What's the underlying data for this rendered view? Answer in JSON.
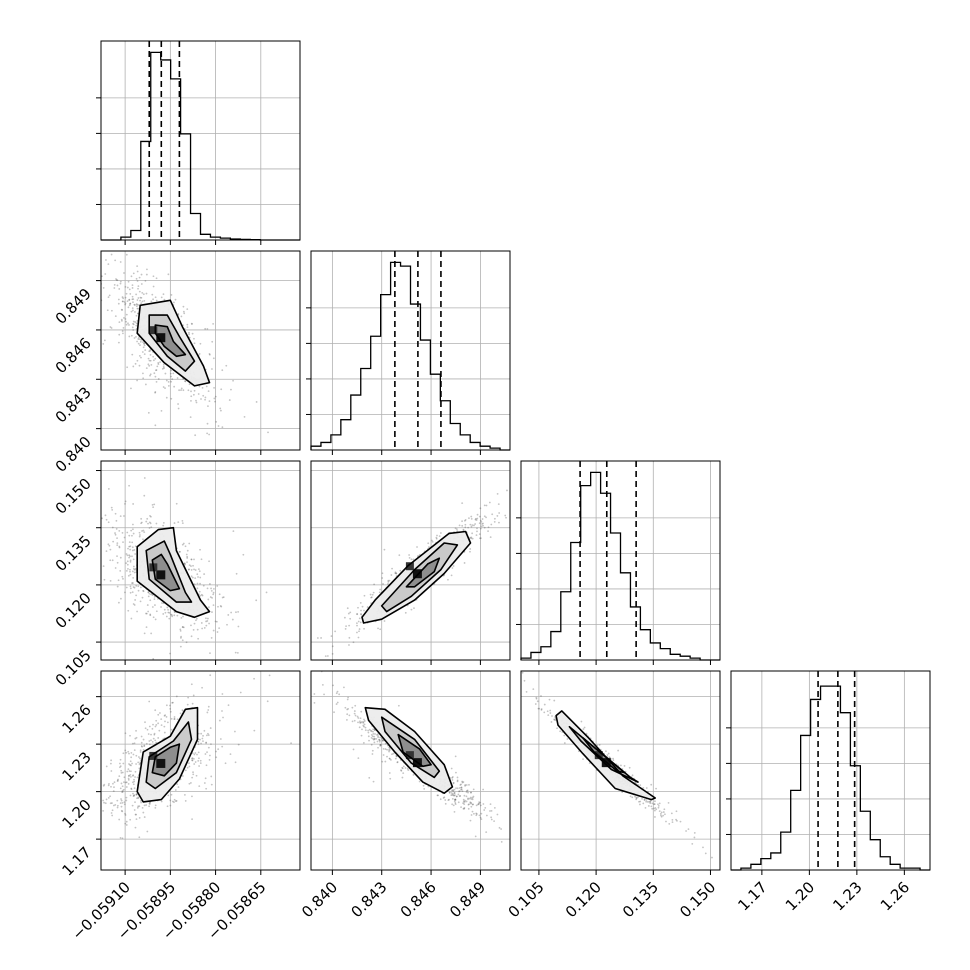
{
  "colors": {
    "contour": "#000000",
    "scatter": "#555555",
    "grid": "#b0b0b0",
    "quantile": "#000000"
  },
  "chart_data": {
    "type": "corner",
    "parameters": [
      {
        "range": [
          -0.05918,
          -0.05852
        ],
        "ticks": [
          -0.0591,
          -0.05895,
          -0.0588,
          -0.05865
        ],
        "tick_labels": [
          "−0.05910",
          "−0.05895",
          "−0.05880",
          "−0.05865"
        ],
        "hist_bins": [
          0.0,
          0.0,
          0.015,
          0.05,
          0.52,
          0.99,
          0.95,
          0.85,
          0.56,
          0.14,
          0.03,
          0.015,
          0.01,
          0.005,
          0.003,
          0.002,
          0.0,
          0.0,
          0.0,
          0.0
        ],
        "quantiles": [
          -0.05902,
          -0.05898,
          -0.05892
        ]
      },
      {
        "range": [
          0.8387,
          0.8508
        ],
        "ticks": [
          0.84,
          0.843,
          0.846,
          0.849
        ],
        "tick_labels": [
          "0.840",
          "0.843",
          "0.846",
          "0.849"
        ],
        "hist_bins": [
          0.02,
          0.04,
          0.08,
          0.16,
          0.29,
          0.43,
          0.6,
          0.82,
          0.99,
          0.97,
          0.77,
          0.58,
          0.4,
          0.26,
          0.14,
          0.08,
          0.04,
          0.02,
          0.01,
          0.0
        ],
        "quantiles": [
          0.8438,
          0.8452,
          0.8466
        ]
      },
      {
        "range": [
          0.1003,
          0.1525
        ],
        "ticks": [
          0.105,
          0.12,
          0.135,
          0.15
        ],
        "tick_labels": [
          "0.105",
          "0.120",
          "0.135",
          "0.150"
        ],
        "hist_bins": [
          0.01,
          0.04,
          0.07,
          0.15,
          0.36,
          0.62,
          0.92,
          0.99,
          0.88,
          0.67,
          0.46,
          0.28,
          0.16,
          0.09,
          0.06,
          0.03,
          0.02,
          0.01,
          0.0,
          0.0
        ],
        "quantiles": [
          0.1158,
          0.1228,
          0.1305
        ]
      },
      {
        "range": [
          1.1505,
          1.2762
        ],
        "ticks": [
          1.17,
          1.2,
          1.23,
          1.26
        ],
        "tick_labels": [
          "1.17",
          "1.20",
          "1.23",
          "1.26"
        ],
        "hist_bins": [
          0.0,
          0.01,
          0.03,
          0.06,
          0.09,
          0.2,
          0.42,
          0.71,
          0.9,
          0.97,
          0.97,
          0.83,
          0.55,
          0.31,
          0.16,
          0.07,
          0.03,
          0.01,
          0.01,
          0.0
        ],
        "quantiles": [
          1.2055,
          1.218,
          1.2286
        ]
      }
    ],
    "pairs": [
      {
        "x": 0,
        "y": 1,
        "mean": [
          -0.05898,
          0.8455
        ],
        "sd": [
          7e-05,
          0.0016
        ],
        "corr": -0.72,
        "contours": [
          [
            [
              -0.05905,
              0.8475
            ],
            [
              -0.05895,
              0.8478
            ],
            [
              -0.05891,
              0.8462
            ],
            [
              -0.05884,
              0.8438
            ],
            [
              -0.05882,
              0.8428
            ],
            [
              -0.05887,
              0.8426
            ],
            [
              -0.05897,
              0.844
            ],
            [
              -0.05906,
              0.8458
            ]
          ],
          [
            [
              -0.05902,
              0.8469
            ],
            [
              -0.05896,
              0.8469
            ],
            [
              -0.05892,
              0.8456
            ],
            [
              -0.05887,
              0.8441
            ],
            [
              -0.0589,
              0.8435
            ],
            [
              -0.05896,
              0.8444
            ],
            [
              -0.05902,
              0.8458
            ]
          ],
          [
            [
              -0.059,
              0.8463
            ],
            [
              -0.05896,
              0.8462
            ],
            [
              -0.05894,
              0.8453
            ],
            [
              -0.0589,
              0.8445
            ],
            [
              -0.05893,
              0.8444
            ],
            [
              -0.05897,
              0.845
            ],
            [
              -0.059,
              0.8458
            ]
          ]
        ]
      },
      {
        "x": 0,
        "y": 2,
        "mean": [
          -0.05898,
          0.1225
        ],
        "sd": [
          7e-05,
          0.0058
        ],
        "corr": -0.55,
        "contours": [
          [
            [
              -0.05906,
              0.13
            ],
            [
              -0.05899,
              0.1345
            ],
            [
              -0.05894,
              0.135
            ],
            [
              -0.05893,
              0.129
            ],
            [
              -0.05885,
              0.116
            ],
            [
              -0.05882,
              0.113
            ],
            [
              -0.05887,
              0.1115
            ],
            [
              -0.05893,
              0.113
            ],
            [
              -0.05906,
              0.121
            ]
          ],
          [
            [
              -0.05903,
              0.129
            ],
            [
              -0.05897,
              0.1315
            ],
            [
              -0.05895,
              0.128
            ],
            [
              -0.0589,
              0.118
            ],
            [
              -0.05888,
              0.1155
            ],
            [
              -0.05893,
              0.1155
            ],
            [
              -0.05902,
              0.1215
            ]
          ],
          [
            [
              -0.05901,
              0.1265
            ],
            [
              -0.05898,
              0.128
            ],
            [
              -0.05896,
              0.1255
            ],
            [
              -0.05892,
              0.119
            ],
            [
              -0.05895,
              0.1185
            ],
            [
              -0.059,
              0.1215
            ]
          ]
        ]
      },
      {
        "x": 0,
        "y": 3,
        "mean": [
          -0.05898,
          1.2175
        ],
        "sd": [
          7e-05,
          0.0125
        ],
        "corr": 0.55,
        "contours": [
          [
            [
              -0.05906,
              1.2
            ],
            [
              -0.05904,
              1.225
            ],
            [
              -0.05895,
              1.235
            ],
            [
              -0.0589,
              1.252
            ],
            [
              -0.05886,
              1.253
            ],
            [
              -0.05886,
              1.233
            ],
            [
              -0.05892,
              1.208
            ],
            [
              -0.05898,
              1.195
            ],
            [
              -0.05904,
              1.1935
            ]
          ],
          [
            [
              -0.05903,
              1.206
            ],
            [
              -0.05902,
              1.222
            ],
            [
              -0.05894,
              1.232
            ],
            [
              -0.05889,
              1.244
            ],
            [
              -0.05888,
              1.233
            ],
            [
              -0.05893,
              1.212
            ],
            [
              -0.059,
              1.202
            ]
          ],
          [
            [
              -0.05901,
              1.212
            ],
            [
              -0.059,
              1.222
            ],
            [
              -0.05895,
              1.228
            ],
            [
              -0.05892,
              1.23
            ],
            [
              -0.05893,
              1.218
            ],
            [
              -0.05897,
              1.21
            ]
          ]
        ]
      },
      {
        "x": 1,
        "y": 2,
        "mean": [
          0.8452,
          0.1228
        ],
        "sd": [
          0.0016,
          0.0058
        ],
        "corr": 0.93,
        "contours": [
          [
            [
              0.8418,
              0.1115
            ],
            [
              0.8426,
              0.116
            ],
            [
              0.8446,
              0.125
            ],
            [
              0.8471,
              0.1335
            ],
            [
              0.8481,
              0.134
            ],
            [
              0.8484,
              0.131
            ],
            [
              0.8468,
              0.123
            ],
            [
              0.845,
              0.116
            ],
            [
              0.843,
              0.111
            ],
            [
              0.8419,
              0.11
            ]
          ],
          [
            [
              0.843,
              0.1145
            ],
            [
              0.845,
              0.124
            ],
            [
              0.8468,
              0.131
            ],
            [
              0.8476,
              0.1305
            ],
            [
              0.8466,
              0.124
            ],
            [
              0.8448,
              0.117
            ],
            [
              0.8433,
              0.113
            ]
          ],
          [
            [
              0.8445,
              0.1195
            ],
            [
              0.8458,
              0.1255
            ],
            [
              0.8465,
              0.127
            ],
            [
              0.8462,
              0.1235
            ],
            [
              0.845,
              0.1195
            ]
          ]
        ]
      },
      {
        "x": 1,
        "y": 3,
        "mean": [
          0.8452,
          1.218
        ],
        "sd": [
          0.0016,
          0.0125
        ],
        "corr": -0.94,
        "contours": [
          [
            [
              0.842,
              1.253
            ],
            [
              0.8432,
              1.252
            ],
            [
              0.845,
              1.238
            ],
            [
              0.8468,
              1.217
            ],
            [
              0.8473,
              1.203
            ],
            [
              0.8468,
              1.199
            ],
            [
              0.8455,
              1.206
            ],
            [
              0.8438,
              1.225
            ],
            [
              0.8422,
              1.245
            ]
          ],
          [
            [
              0.843,
              1.247
            ],
            [
              0.845,
              1.233
            ],
            [
              0.8465,
              1.213
            ],
            [
              0.8462,
              1.209
            ],
            [
              0.8448,
              1.218
            ],
            [
              0.8432,
              1.238
            ]
          ],
          [
            [
              0.844,
              1.236
            ],
            [
              0.8453,
              1.227
            ],
            [
              0.846,
              1.217
            ],
            [
              0.8455,
              1.216
            ],
            [
              0.8443,
              1.225
            ]
          ]
        ]
      },
      {
        "x": 2,
        "y": 3,
        "mean": [
          0.1228,
          1.218
        ],
        "sd": [
          0.0058,
          0.0125
        ],
        "corr": -0.98,
        "contours": [
          [
            [
              0.1095,
              1.248
            ],
            [
              0.111,
              1.251
            ],
            [
              0.118,
              1.234
            ],
            [
              0.127,
              1.21
            ],
            [
              0.1355,
              1.196
            ],
            [
              0.1345,
              1.195
            ],
            [
              0.125,
              1.202
            ],
            [
              0.1165,
              1.224
            ],
            [
              0.11,
              1.242
            ]
          ],
          [
            [
              0.113,
              1.241
            ],
            [
              0.12,
              1.227
            ],
            [
              0.129,
              1.209
            ],
            [
              0.131,
              1.206
            ],
            [
              0.124,
              1.214
            ],
            [
              0.116,
              1.232
            ]
          ],
          [
            [
              0.1165,
              1.234
            ],
            [
              0.1215,
              1.224
            ],
            [
              0.1275,
              1.212
            ],
            [
              0.1255,
              1.213
            ],
            [
              0.1195,
              1.225
            ]
          ]
        ]
      }
    ]
  }
}
